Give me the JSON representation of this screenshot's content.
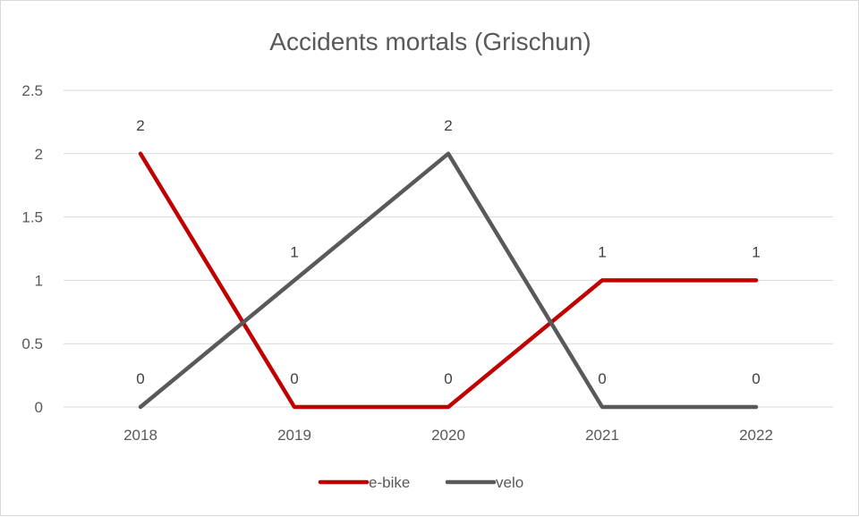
{
  "chart_data": {
    "type": "line",
    "title": "Accidents mortals (Grischun)",
    "categories": [
      "2018",
      "2019",
      "2020",
      "2021",
      "2022"
    ],
    "series": [
      {
        "name": "e-bike",
        "values": [
          2,
          0,
          0,
          1,
          1
        ],
        "color": "#c00000"
      },
      {
        "name": "velo",
        "values": [
          0,
          1,
          2,
          0,
          0
        ],
        "color": "#595959"
      }
    ],
    "ylim": [
      0,
      2.5
    ],
    "yticks": [
      "0",
      "0.5",
      "1",
      "1.5",
      "2",
      "2.5"
    ],
    "grid": true,
    "legend": "bottom",
    "data_labels": true,
    "gridline_color": "#d9d9d9"
  }
}
